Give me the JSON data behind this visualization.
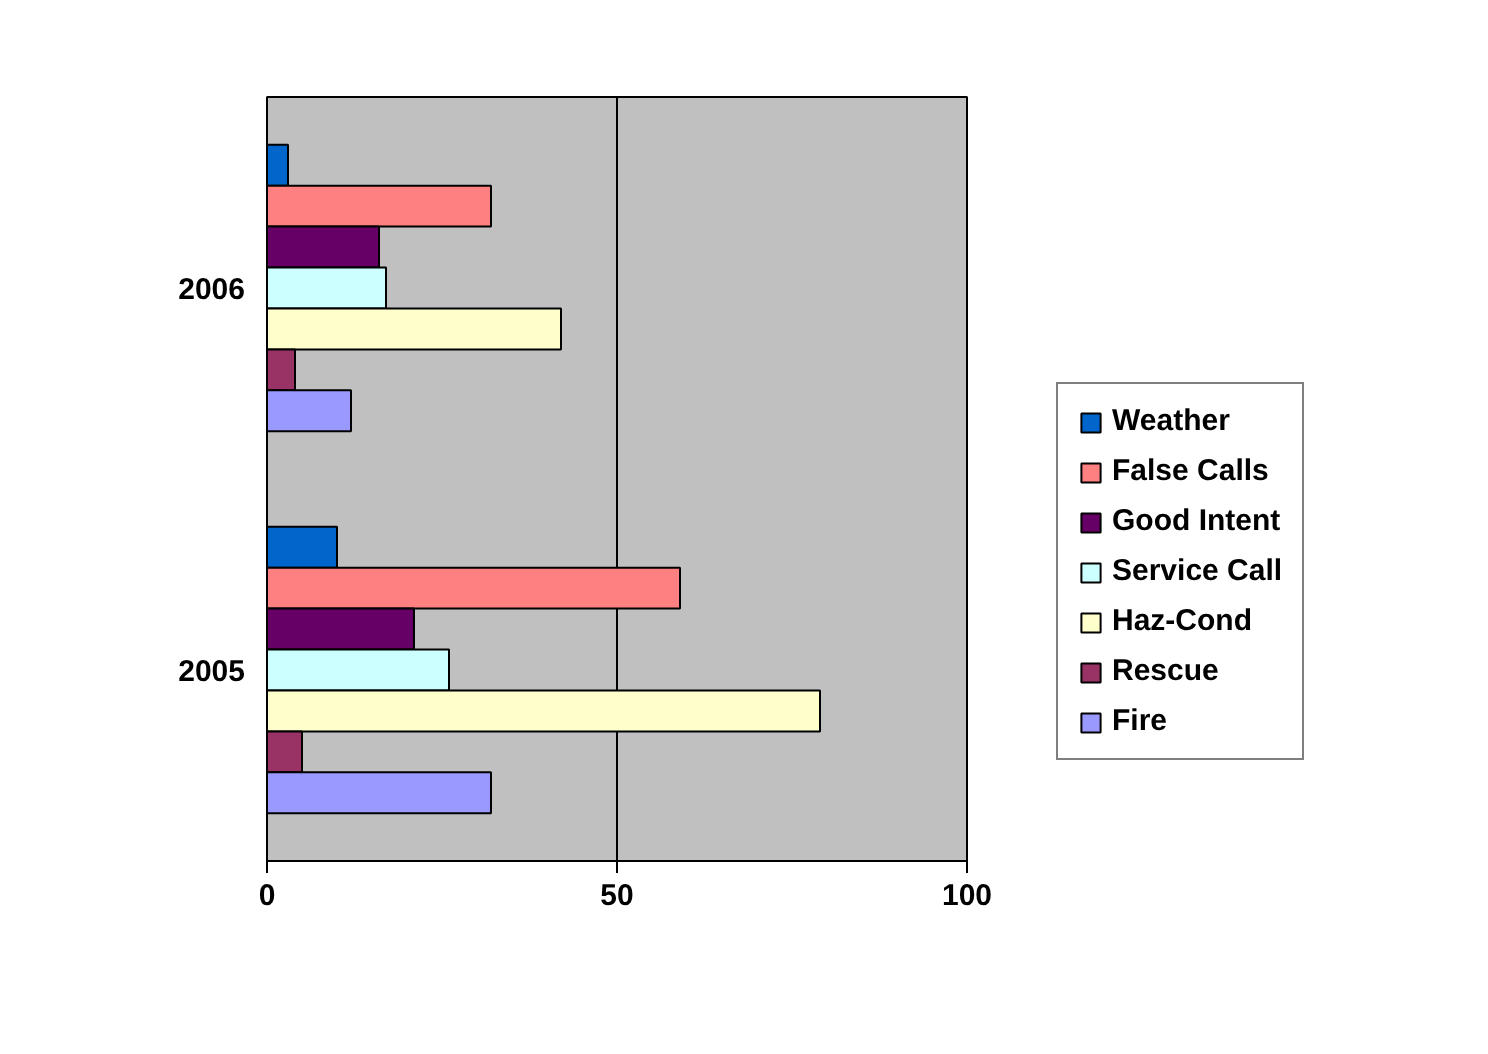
{
  "chart_data": {
    "type": "bar",
    "orientation": "horizontal",
    "categories": [
      "2006",
      "2005"
    ],
    "series": [
      {
        "name": "Weather",
        "color": "#0066cc",
        "values": [
          3,
          10
        ]
      },
      {
        "name": "False Calls",
        "color": "#ff8080",
        "values": [
          32,
          59
        ]
      },
      {
        "name": "Good Intent",
        "color": "#660066",
        "values": [
          16,
          21
        ]
      },
      {
        "name": "Service Call",
        "color": "#ccffff",
        "values": [
          17,
          26
        ]
      },
      {
        "name": "Haz-Cond",
        "color": "#ffffcc",
        "values": [
          42,
          79
        ]
      },
      {
        "name": "Rescue",
        "color": "#993366",
        "values": [
          4,
          5
        ]
      },
      {
        "name": "Fire",
        "color": "#9999ff",
        "values": [
          12,
          32
        ]
      }
    ],
    "xlim": [
      0,
      100
    ],
    "xticks": [
      0,
      50,
      100
    ],
    "grid": "x",
    "legend": "right"
  }
}
